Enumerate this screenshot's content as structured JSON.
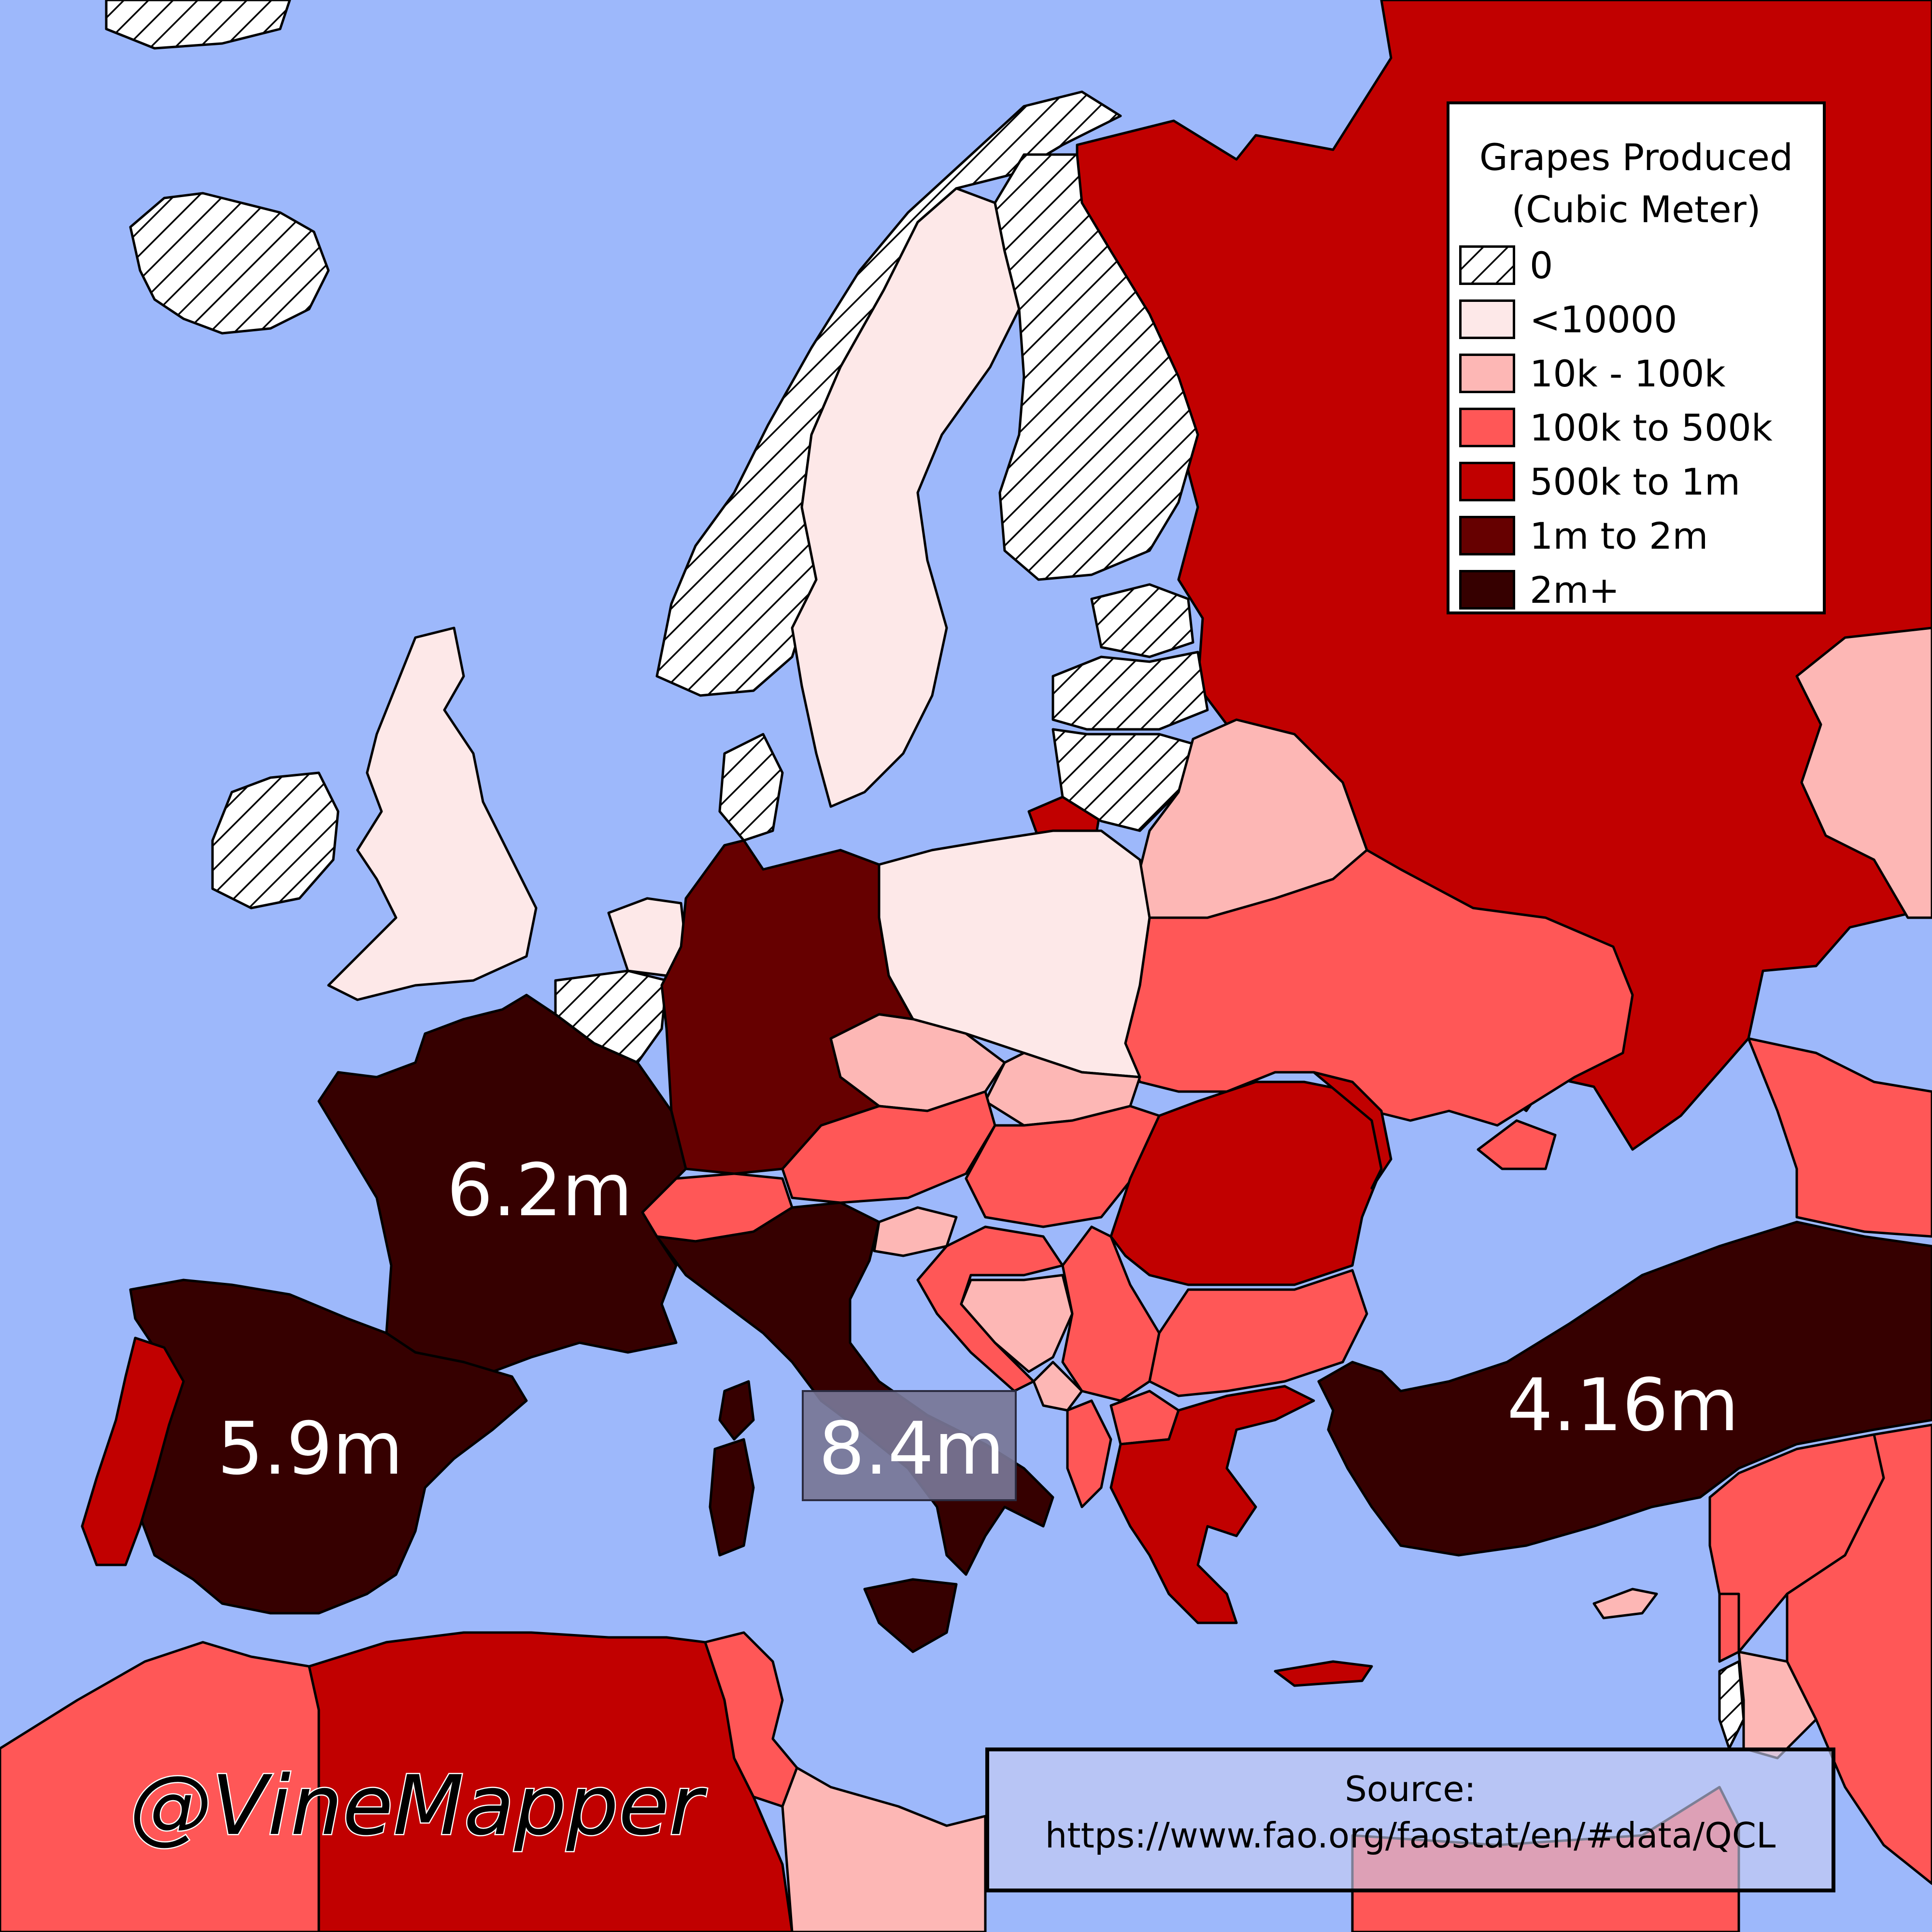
{
  "colors": {
    "sea": "#9db8fb",
    "cat_0": "hatched",
    "cat_lt10000": "#fde8e8",
    "cat_10k_100k": "#fdb7b5",
    "cat_100k_500k": "#ff5757",
    "cat_500k_1m": "#c10000",
    "cat_1m_2m": "#660000",
    "cat_2m_plus": "#360000"
  },
  "legend": {
    "title_line1": "Grapes Produced",
    "title_line2": "(Cubic Meter)",
    "items": [
      {
        "label": "0",
        "swatch": "hatch"
      },
      {
        "label": "<10000",
        "swatch": "#fde8e8"
      },
      {
        "label": "10k - 100k",
        "swatch": "#fdb7b5"
      },
      {
        "label": "100k to 500k",
        "swatch": "#ff5757"
      },
      {
        "label": "500k to 1m",
        "swatch": "#c10000"
      },
      {
        "label": "1m to 2m",
        "swatch": "#660000"
      },
      {
        "label": "2m+",
        "swatch": "#360000"
      }
    ]
  },
  "map_labels": {
    "france": "6.2m",
    "spain": "5.9m",
    "italy": "8.4m",
    "turkey": "4.16m"
  },
  "source": {
    "line1": "Source:",
    "line2": "https://www.fao.org/faostat/en/#data/QCL"
  },
  "watermark": "@VineMapper"
}
